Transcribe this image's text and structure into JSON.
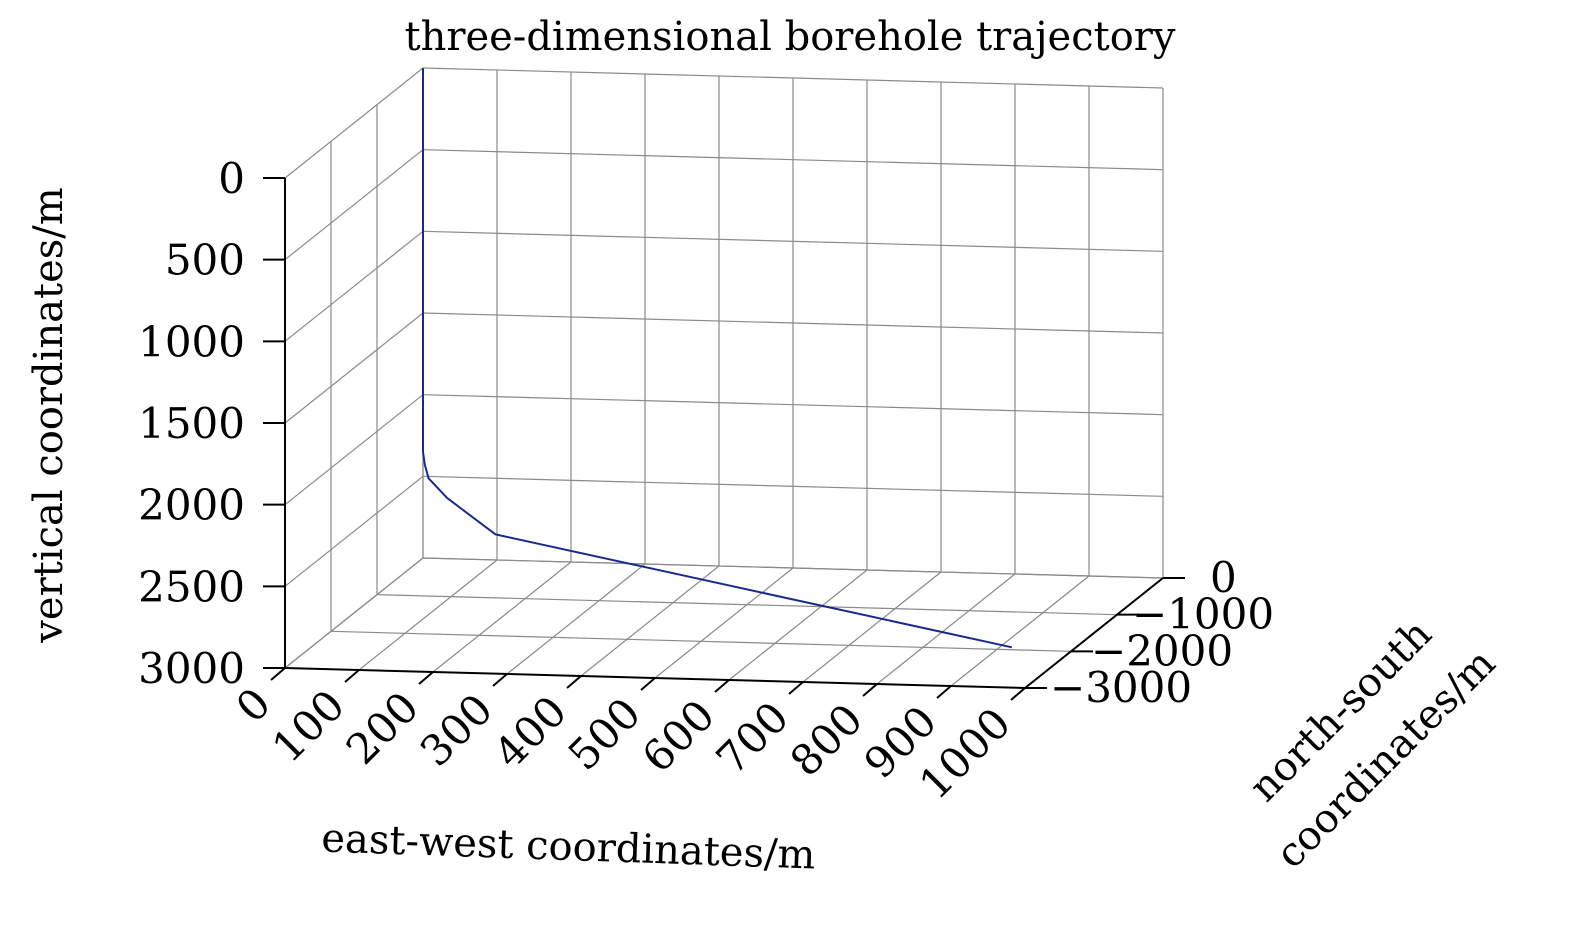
{
  "chart_data": {
    "type": "line",
    "projection": "3d",
    "title": "three-dimensional borehole trajectory",
    "xlabel": "east-west coordinates/m",
    "ylabel": "north-south coordinates/m",
    "ylabel_lines": [
      "north-south",
      "coordinates/m"
    ],
    "zlabel": "vertical coordinates/m",
    "xlim": [
      0,
      1000
    ],
    "ylim": [
      -3000,
      0
    ],
    "zlim": [
      0,
      3000
    ],
    "z_reversed": true,
    "grid": true,
    "x_ticks": [
      "0",
      "100",
      "200",
      "300",
      "400",
      "500",
      "600",
      "700",
      "800",
      "900",
      "1000"
    ],
    "y_ticks": [
      "0",
      "−1000",
      "−2000",
      "−3000"
    ],
    "z_ticks": [
      "0",
      "500",
      "1000",
      "1500",
      "2000",
      "2500",
      "3000"
    ],
    "series": [
      {
        "name": "borehole trajectory",
        "color": "#1a2a8c",
        "points": [
          {
            "x": 0,
            "y": 0,
            "z": 0
          },
          {
            "x": 0,
            "y": 0,
            "z": 2350
          },
          {
            "x": 5,
            "y": -40,
            "z": 2420
          },
          {
            "x": 20,
            "y": -200,
            "z": 2465
          },
          {
            "x": 70,
            "y": -600,
            "z": 2490
          },
          {
            "x": 190,
            "y": -1480,
            "z": 2500
          },
          {
            "x": 1050,
            "y": -4090,
            "z": 2500
          }
        ]
      }
    ]
  }
}
